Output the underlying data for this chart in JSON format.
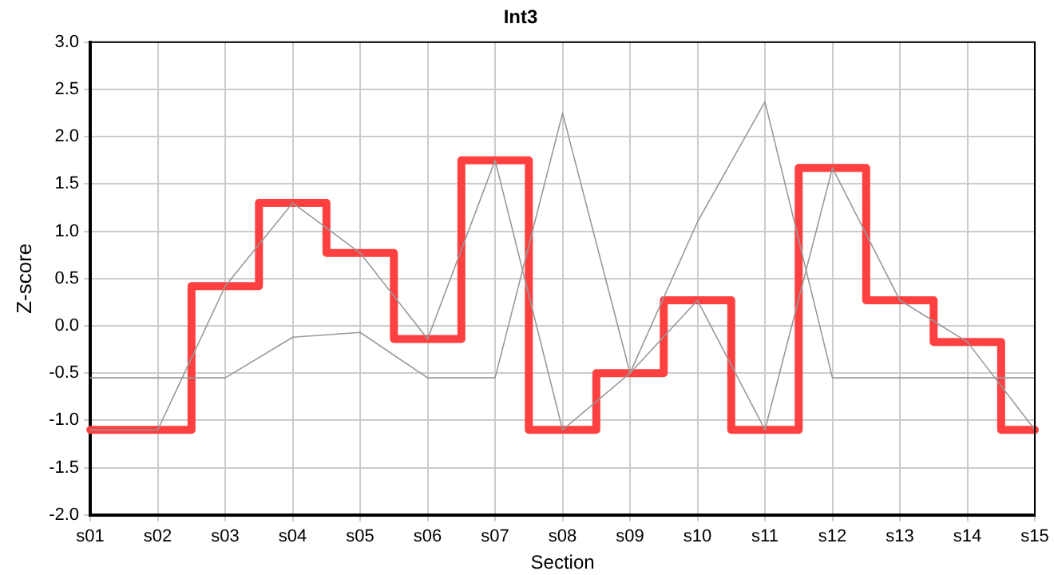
{
  "chart_data": {
    "type": "line",
    "title": "Int3",
    "xlabel": "Section",
    "ylabel": "Z-score",
    "categories": [
      "s01",
      "s02",
      "s03",
      "s04",
      "s05",
      "s06",
      "s07",
      "s08",
      "s09",
      "s10",
      "s11",
      "s12",
      "s13",
      "s14",
      "s15"
    ],
    "series": [
      {
        "type": "line",
        "color": "#999999",
        "values": [
          -0.55,
          -0.55,
          -0.55,
          -0.12,
          -0.07,
          -0.55,
          -0.55,
          2.25,
          -0.5,
          1.1,
          2.37,
          -0.55,
          -0.55,
          -0.55,
          -0.55
        ]
      },
      {
        "type": "line",
        "color": "#999999",
        "values": [
          -1.1,
          -1.1,
          0.42,
          1.3,
          0.77,
          -0.14,
          1.75,
          -1.1,
          -0.5,
          0.27,
          -1.1,
          1.67,
          0.27,
          -0.17,
          -1.1
        ]
      },
      {
        "type": "step",
        "color": "#ff4040",
        "values": [
          -1.1,
          -1.1,
          0.42,
          1.3,
          0.77,
          -0.14,
          1.75,
          -1.1,
          -0.5,
          0.27,
          -1.1,
          1.67,
          0.27,
          -0.17,
          -1.1
        ]
      }
    ],
    "ylim": [
      -2,
      3
    ],
    "yticks": [
      {
        "value": -2,
        "label": "-2.0"
      },
      {
        "value": -1.5,
        "label": "-1.5"
      },
      {
        "value": -1,
        "label": "-1.0"
      },
      {
        "value": -0.5,
        "label": "-0.5"
      },
      {
        "value": 0,
        "label": "0.0"
      },
      {
        "value": 0.5,
        "label": "0.5"
      },
      {
        "value": 1,
        "label": "1.0"
      },
      {
        "value": 1.5,
        "label": "1.5"
      },
      {
        "value": 2,
        "label": "2.0"
      },
      {
        "value": 2.5,
        "label": "2.5"
      },
      {
        "value": 3,
        "label": "3.0"
      }
    ],
    "grid": true,
    "legend": false,
    "marker": "none"
  }
}
